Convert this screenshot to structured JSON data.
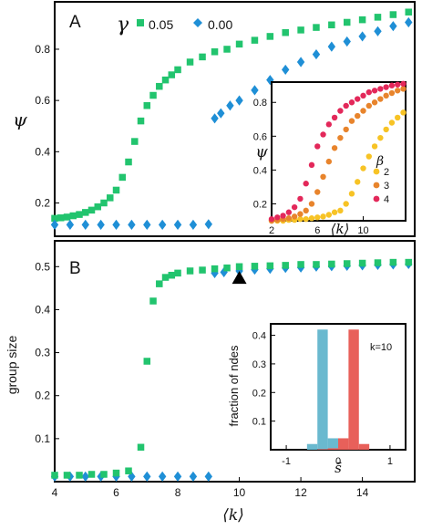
{
  "chart_data": [
    {
      "type": "scatter",
      "panel_label": "A",
      "xlabel": "⟨k⟩",
      "ylabel": "ψ",
      "xlim": [
        4,
        15.7
      ],
      "ylim": [
        0.07,
        0.985
      ],
      "yticks": [
        "0.2",
        "0.4",
        "0.6",
        "0.8"
      ],
      "legend_title": "γ",
      "legend_placement": "top",
      "series": [
        {
          "name": "0.05",
          "marker": "square",
          "color": "#22c46e",
          "x": [
            4.0,
            4.2,
            4.4,
            4.6,
            4.8,
            5.0,
            5.2,
            5.4,
            5.6,
            5.8,
            6.0,
            6.2,
            6.4,
            6.6,
            6.8,
            7.0,
            7.2,
            7.4,
            7.6,
            7.8,
            8.0,
            8.4,
            8.8,
            9.2,
            9.6,
            10.0,
            10.5,
            11.0,
            11.5,
            12.0,
            12.5,
            13.0,
            13.5,
            14.0,
            14.5,
            15.0,
            15.5
          ],
          "y": [
            0.14,
            0.142,
            0.145,
            0.15,
            0.155,
            0.163,
            0.172,
            0.185,
            0.2,
            0.22,
            0.25,
            0.3,
            0.36,
            0.44,
            0.52,
            0.58,
            0.62,
            0.655,
            0.68,
            0.7,
            0.72,
            0.75,
            0.77,
            0.79,
            0.8,
            0.82,
            0.835,
            0.85,
            0.865,
            0.875,
            0.885,
            0.895,
            0.905,
            0.915,
            0.925,
            0.935,
            0.945
          ]
        },
        {
          "name": "0.00",
          "marker": "diamond",
          "color": "#1f8fd6",
          "x": [
            4.0,
            4.5,
            5.0,
            5.5,
            6.0,
            6.5,
            7.0,
            7.5,
            8.0,
            8.5,
            9.0,
            9.2,
            9.4,
            9.7,
            10.0,
            10.5,
            11.0,
            11.5,
            12.0,
            12.5,
            13.0,
            13.5,
            14.0,
            14.5,
            15.0,
            15.5
          ],
          "y": [
            0.115,
            0.115,
            0.115,
            0.115,
            0.115,
            0.115,
            0.115,
            0.115,
            0.115,
            0.115,
            0.117,
            0.53,
            0.55,
            0.58,
            0.6,
            0.64,
            0.68,
            0.72,
            0.75,
            0.78,
            0.81,
            0.83,
            0.85,
            0.87,
            0.89,
            0.905
          ]
        }
      ],
      "inset": {
        "type": "scatter",
        "xlabel": "⟨k⟩",
        "ylabel": "ψ",
        "xlim": [
          2,
          13.7
        ],
        "ylim": [
          0.1,
          0.92
        ],
        "xticks": [
          "2",
          "6",
          "10"
        ],
        "yticks": [
          "0.2",
          "0.4",
          "0.6",
          "0.8"
        ],
        "legend_title": "β",
        "legend_placement": "bottom-right",
        "series": [
          {
            "name": "2",
            "color": "#f7c325",
            "x": [
              2.0,
              2.5,
              3.0,
              3.5,
              4.0,
              4.5,
              5.0,
              5.5,
              6.0,
              6.5,
              7.0,
              7.5,
              8.0,
              8.5,
              9.0,
              9.5,
              10.0,
              10.5,
              11.0,
              11.5,
              12.0,
              12.5,
              13.0,
              13.5
            ],
            "y": [
              0.1,
              0.1,
              0.1,
              0.105,
              0.105,
              0.11,
              0.11,
              0.115,
              0.12,
              0.125,
              0.135,
              0.15,
              0.16,
              0.2,
              0.26,
              0.33,
              0.41,
              0.48,
              0.54,
              0.59,
              0.64,
              0.68,
              0.71,
              0.74
            ]
          },
          {
            "name": "3",
            "color": "#e8842c",
            "x": [
              2.0,
              2.5,
              3.0,
              3.5,
              4.0,
              4.5,
              5.0,
              5.5,
              6.0,
              6.5,
              7.0,
              7.5,
              8.0,
              8.5,
              9.0,
              9.5,
              10.0,
              10.5,
              11.0,
              11.5,
              12.0,
              12.5,
              13.0,
              13.5
            ],
            "y": [
              0.1,
              0.105,
              0.11,
              0.115,
              0.125,
              0.14,
              0.16,
              0.2,
              0.27,
              0.36,
              0.45,
              0.53,
              0.59,
              0.64,
              0.69,
              0.72,
              0.75,
              0.78,
              0.8,
              0.82,
              0.84,
              0.855,
              0.87,
              0.88
            ]
          },
          {
            "name": "4",
            "color": "#e3285a",
            "x": [
              2.0,
              2.5,
              3.0,
              3.5,
              4.0,
              4.5,
              5.0,
              5.5,
              6.0,
              6.5,
              7.0,
              7.5,
              8.0,
              8.5,
              9.0,
              9.5,
              10.0,
              10.5,
              11.0,
              11.5,
              12.0,
              12.5,
              13.0,
              13.5
            ],
            "y": [
              0.11,
              0.12,
              0.13,
              0.15,
              0.18,
              0.23,
              0.32,
              0.43,
              0.54,
              0.61,
              0.67,
              0.71,
              0.75,
              0.78,
              0.8,
              0.82,
              0.84,
              0.86,
              0.87,
              0.88,
              0.89,
              0.9,
              0.905,
              0.91
            ]
          }
        ]
      }
    },
    {
      "type": "scatter",
      "panel_label": "B",
      "xlabel": "⟨k⟩",
      "ylabel": "group size",
      "xlim": [
        4,
        15.7
      ],
      "ylim": [
        0,
        0.56
      ],
      "xticks": [
        "4",
        "6",
        "8",
        "10",
        "12",
        "14"
      ],
      "yticks": [
        "0.1",
        "0.2",
        "0.3",
        "0.4",
        "0.5"
      ],
      "annotation": {
        "marker": "triangle",
        "x": 10,
        "y": 0.475,
        "color": "#000000"
      },
      "series": [
        {
          "name": "0.05",
          "marker": "square",
          "color": "#22c46e",
          "x": [
            4.0,
            4.4,
            4.8,
            5.2,
            5.6,
            6.0,
            6.4,
            6.8,
            7.0,
            7.2,
            7.4,
            7.6,
            7.8,
            8.0,
            8.4,
            8.8,
            9.2,
            9.6,
            10.0,
            10.5,
            11.0,
            11.5,
            12.0,
            12.5,
            13.0,
            13.5,
            14.0,
            14.5,
            15.0,
            15.5
          ],
          "y": [
            0.015,
            0.015,
            0.015,
            0.017,
            0.017,
            0.02,
            0.025,
            0.08,
            0.28,
            0.42,
            0.46,
            0.475,
            0.48,
            0.485,
            0.49,
            0.492,
            0.495,
            0.497,
            0.5,
            0.501,
            0.502,
            0.503,
            0.505,
            0.505,
            0.506,
            0.507,
            0.508,
            0.509,
            0.51,
            0.51
          ]
        },
        {
          "name": "0.00",
          "marker": "diamond",
          "color": "#1f8fd6",
          "x": [
            4.0,
            4.5,
            5.0,
            5.5,
            6.0,
            6.5,
            7.0,
            7.5,
            8.0,
            8.5,
            9.0,
            9.2,
            9.5,
            10.0,
            10.5,
            11.0,
            11.5,
            12.0,
            12.5,
            13.0,
            13.5,
            14.0,
            14.5,
            15.0,
            15.5
          ],
          "y": [
            0.012,
            0.012,
            0.012,
            0.012,
            0.012,
            0.012,
            0.012,
            0.012,
            0.012,
            0.012,
            0.012,
            0.485,
            0.487,
            0.49,
            0.493,
            0.495,
            0.497,
            0.498,
            0.5,
            0.501,
            0.502,
            0.503,
            0.504,
            0.505,
            0.506
          ]
        }
      ],
      "inset": {
        "type": "bar",
        "xlabel": "s̄",
        "ylabel": "fraction of ndes",
        "annotation_text": "k=10",
        "xlim": [
          -1.3,
          1.3
        ],
        "ylim": [
          0,
          0.44
        ],
        "xticks": [
          "-1",
          "0",
          "1"
        ],
        "yticks": [
          "0.1",
          "0.2",
          "0.3",
          "0.4"
        ],
        "bin_width": 0.2,
        "series": [
          {
            "name": "blue",
            "color": "#6ab9cf",
            "bin_centers": [
              -0.5,
              -0.3,
              -0.1,
              0.1,
              0.3
            ],
            "values": [
              0.02,
              0.42,
              0.04,
              0.005,
              0.002
            ]
          },
          {
            "name": "red",
            "color": "#e8605a",
            "bin_centers": [
              -0.3,
              -0.1,
              0.1,
              0.3,
              0.5
            ],
            "values": [
              0.002,
              0.005,
              0.04,
              0.42,
              0.02
            ]
          }
        ]
      }
    }
  ]
}
